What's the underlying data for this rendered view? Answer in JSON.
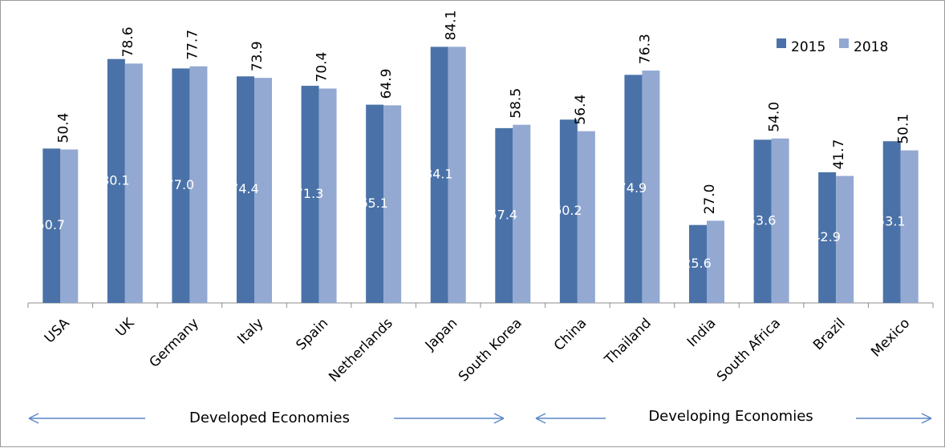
{
  "chart_data": {
    "type": "bar",
    "categories": [
      "USA",
      "UK",
      "Germany",
      "Italy",
      "Spain",
      "Netherlands",
      "Japan",
      "South Korea",
      "China",
      "Thailand",
      "India",
      "South Africa",
      "Brazil",
      "Mexico"
    ],
    "series": [
      {
        "name": "2015",
        "values": [
          50.7,
          80.1,
          77.0,
          74.4,
          71.3,
          65.1,
          84.1,
          57.4,
          60.2,
          74.9,
          25.6,
          53.6,
          42.9,
          53.1
        ],
        "labels": [
          "50.7",
          "80.1",
          "77.0",
          "74.4",
          "71.3",
          "65.1",
          "84.1",
          "57.4",
          "60.2",
          "74.9",
          "25.6",
          "53.6",
          "42.9",
          "53.1"
        ],
        "color": "#4a72a8"
      },
      {
        "name": "2018",
        "values": [
          50.4,
          78.6,
          77.7,
          73.9,
          70.4,
          64.9,
          84.1,
          58.5,
          56.4,
          76.3,
          27.0,
          54.0,
          41.7,
          50.1
        ],
        "labels": [
          "50.4",
          "78.6",
          "77.7",
          "73.9",
          "70.4",
          "64.9",
          "84.1",
          "58.5",
          "56.4",
          "76.3",
          "27.0",
          "54.0",
          "41.7",
          "50.1"
        ],
        "color": "#93a9d2"
      }
    ],
    "title": "",
    "xlabel": "",
    "ylabel": "",
    "ylim": [
      0,
      100
    ],
    "grid": false,
    "legend_position": "top-right",
    "annotations": [
      {
        "text": "Developed Economies",
        "group": "developed"
      },
      {
        "text": "Developing Economies",
        "group": "developing"
      }
    ]
  }
}
